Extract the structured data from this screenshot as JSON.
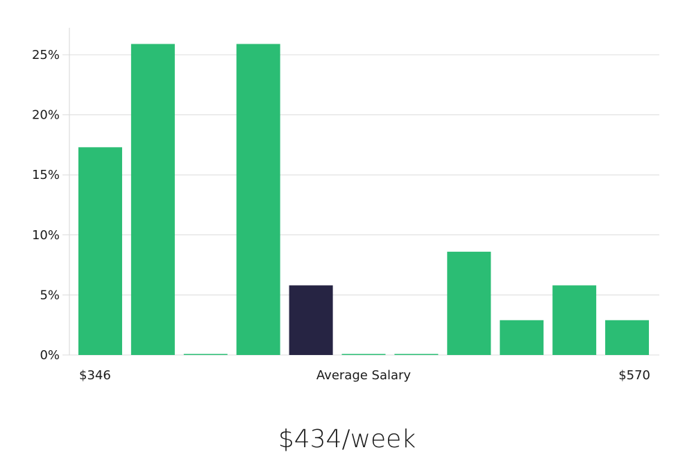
{
  "colors": {
    "bar": "#2bbd74",
    "highlight_bar": "#262443",
    "grid": "#dcdcdc",
    "text": "#1a1a1a"
  },
  "summary": {
    "average_weekly_salary": "$434/week"
  },
  "chart_data": {
    "type": "bar",
    "title": "",
    "xlabel": "Average Salary",
    "ylabel": "",
    "x_range_labels": {
      "min": "$346",
      "max": "$570"
    },
    "yticks": [
      "0%",
      "5%",
      "10%",
      "15%",
      "20%",
      "25%"
    ],
    "ylim": [
      0,
      27
    ],
    "grid": true,
    "values": [
      17.3,
      25.9,
      0,
      25.9,
      5.8,
      0,
      0,
      8.6,
      2.9,
      5.8,
      2.9
    ],
    "highlight_index": 4
  }
}
